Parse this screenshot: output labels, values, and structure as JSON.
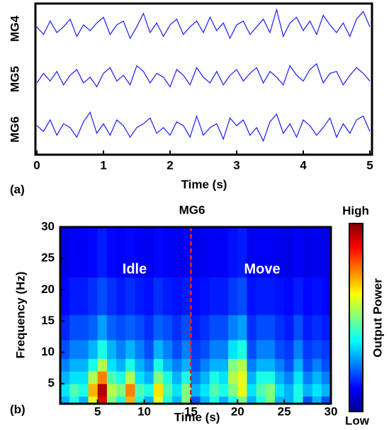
{
  "chart_data": [
    {
      "type": "line",
      "panel_label": "(a)",
      "xlabel": "Time (s)",
      "xlim": [
        0,
        5
      ],
      "xticks": [
        0,
        1,
        2,
        3,
        4,
        5
      ],
      "x": [
        0,
        0.1,
        0.2,
        0.3,
        0.4,
        0.5,
        0.6,
        0.7,
        0.8,
        0.9,
        1,
        1.1,
        1.2,
        1.3,
        1.4,
        1.5,
        1.6,
        1.7,
        1.8,
        1.9,
        2,
        2.1,
        2.2,
        2.3,
        2.4,
        2.5,
        2.6,
        2.7,
        2.8,
        2.9,
        3,
        3.1,
        3.2,
        3.3,
        3.4,
        3.5,
        3.6,
        3.7,
        3.8,
        3.9,
        4,
        4.1,
        4.2,
        4.3,
        4.4,
        4.5,
        4.6,
        4.7,
        4.8,
        4.9,
        5
      ],
      "series": [
        {
          "name": "MG4",
          "color": "#1a1aff",
          "values": [
            0.1,
            -0.3,
            0.4,
            -0.2,
            0.1,
            0.5,
            -0.4,
            0.2,
            -0.1,
            0.3,
            0.6,
            -0.3,
            0.2,
            0.4,
            -0.5,
            0.1,
            0.8,
            -0.2,
            0.3,
            -0.4,
            0.2,
            0.5,
            -0.3,
            0.1,
            0.4,
            -0.2,
            0.6,
            -0.1,
            0.3,
            -0.5,
            0.2,
            0.4,
            -0.3,
            0.1,
            0.5,
            -0.2,
            1.0,
            -0.4,
            0.3,
            0.6,
            -0.1,
            0.4,
            -0.3,
            0.7,
            0.2,
            -0.2,
            0.3,
            -0.4,
            0.5,
            0.9,
            0.1
          ]
        },
        {
          "name": "MG5",
          "color": "#1a1aff",
          "values": [
            -0.2,
            0.3,
            -0.1,
            0.4,
            -0.3,
            0.2,
            0.5,
            -0.2,
            0.1,
            -0.4,
            0.3,
            0.6,
            -0.1,
            0.2,
            -0.3,
            0.7,
            0.4,
            -0.2,
            0.3,
            0.1,
            -0.4,
            0.5,
            0.2,
            -0.3,
            0.6,
            0.1,
            -0.2,
            0.4,
            -0.3,
            0.2,
            0.5,
            -0.1,
            0.3,
            0.6,
            -0.2,
            0.4,
            0.1,
            -0.3,
            0.7,
            0.2,
            -0.1,
            0.5,
            0.8,
            -0.2,
            0.3,
            0.4,
            -0.3,
            0.2,
            0.6,
            0.3,
            -0.1
          ]
        },
        {
          "name": "MG6",
          "color": "#1a1aff",
          "values": [
            0.2,
            -0.1,
            0.5,
            -0.3,
            0.3,
            0.1,
            -0.4,
            0.4,
            0.9,
            -0.2,
            0.3,
            -0.3,
            0.5,
            0.2,
            -0.4,
            0.1,
            0.3,
            0.6,
            -0.2,
            0.1,
            -0.3,
            0.4,
            0.2,
            -0.4,
            0.7,
            -0.3,
            0.1,
            0.3,
            -0.5,
            0.6,
            0.2,
            0.5,
            -0.3,
            0.1,
            -0.6,
            0.4,
            0.8,
            -0.2,
            0.3,
            -0.4,
            0.5,
            0.2,
            -0.3,
            0.1,
            0.6,
            -0.4,
            0.3,
            -0.2,
            0.5,
            0.7,
            -0.1
          ]
        }
      ]
    },
    {
      "type": "heatmap",
      "panel_label": "(b)",
      "title": "MG6",
      "xlabel": "Time (s)",
      "ylabel": "Frequency (Hz)",
      "xlim": [
        1,
        30
      ],
      "xticks": [
        5,
        10,
        15,
        20,
        25,
        30
      ],
      "ylim": [
        1.8,
        30
      ],
      "yticks": [
        5,
        10,
        15,
        20,
        25,
        30
      ],
      "x_bins": [
        1,
        2,
        3,
        4,
        5,
        6,
        7,
        8,
        9,
        10,
        11,
        12,
        13,
        14,
        15,
        16,
        17,
        18,
        19,
        20,
        21,
        22,
        23,
        24,
        25,
        26,
        27,
        28,
        29,
        30
      ],
      "y_bins": [
        1.8,
        3,
        5,
        7,
        9,
        12,
        16,
        22,
        30
      ],
      "z": [
        [
          0.3,
          0.4,
          0.3,
          0.6,
          0.9,
          0.5,
          0.4,
          0.7,
          0.4,
          0.3,
          0.6,
          0.4,
          0.3,
          0.5,
          0.2,
          0.3,
          0.4,
          0.3,
          0.4,
          0.5,
          0.3,
          0.4,
          0.5,
          0.3,
          0.3,
          0.4,
          0.2,
          0.3,
          0.2
        ],
        [
          0.35,
          0.45,
          0.4,
          0.7,
          0.95,
          0.55,
          0.5,
          0.75,
          0.45,
          0.4,
          0.65,
          0.45,
          0.35,
          0.5,
          0.3,
          0.35,
          0.45,
          0.4,
          0.5,
          0.6,
          0.35,
          0.45,
          0.5,
          0.35,
          0.3,
          0.4,
          0.3,
          0.35,
          0.3
        ],
        [
          0.3,
          0.35,
          0.35,
          0.55,
          0.75,
          0.45,
          0.4,
          0.55,
          0.35,
          0.3,
          0.5,
          0.4,
          0.3,
          0.4,
          0.25,
          0.3,
          0.4,
          0.35,
          0.55,
          0.6,
          0.3,
          0.4,
          0.4,
          0.3,
          0.25,
          0.35,
          0.25,
          0.3,
          0.25
        ],
        [
          0.25,
          0.3,
          0.3,
          0.4,
          0.55,
          0.35,
          0.3,
          0.4,
          0.3,
          0.25,
          0.4,
          0.3,
          0.25,
          0.3,
          0.2,
          0.25,
          0.3,
          0.3,
          0.5,
          0.55,
          0.25,
          0.3,
          0.3,
          0.25,
          0.2,
          0.3,
          0.2,
          0.25,
          0.2
        ],
        [
          0.2,
          0.25,
          0.25,
          0.3,
          0.4,
          0.3,
          0.25,
          0.3,
          0.25,
          0.2,
          0.3,
          0.25,
          0.2,
          0.25,
          0.18,
          0.2,
          0.25,
          0.25,
          0.35,
          0.4,
          0.2,
          0.25,
          0.25,
          0.2,
          0.18,
          0.25,
          0.18,
          0.2,
          0.18
        ],
        [
          0.16,
          0.2,
          0.2,
          0.22,
          0.28,
          0.22,
          0.2,
          0.22,
          0.2,
          0.17,
          0.22,
          0.2,
          0.17,
          0.2,
          0.15,
          0.17,
          0.2,
          0.2,
          0.25,
          0.28,
          0.17,
          0.2,
          0.2,
          0.17,
          0.15,
          0.2,
          0.15,
          0.17,
          0.15
        ],
        [
          0.13,
          0.15,
          0.15,
          0.17,
          0.2,
          0.17,
          0.15,
          0.17,
          0.15,
          0.14,
          0.17,
          0.15,
          0.14,
          0.15,
          0.13,
          0.14,
          0.15,
          0.15,
          0.18,
          0.2,
          0.14,
          0.15,
          0.15,
          0.14,
          0.13,
          0.15,
          0.13,
          0.14,
          0.13
        ],
        [
          0.1,
          0.12,
          0.12,
          0.13,
          0.15,
          0.13,
          0.12,
          0.13,
          0.12,
          0.11,
          0.13,
          0.12,
          0.11,
          0.12,
          0.1,
          0.11,
          0.12,
          0.12,
          0.14,
          0.15,
          0.11,
          0.12,
          0.12,
          0.11,
          0.1,
          0.12,
          0.1,
          0.11,
          0.1
        ]
      ],
      "vline": 15,
      "vline_color": "#e0201a",
      "annotations": [
        "Idle",
        "Move"
      ],
      "colorbar_high": "High",
      "colorbar_low": "Low",
      "colorbar_label": "Output Power"
    }
  ]
}
